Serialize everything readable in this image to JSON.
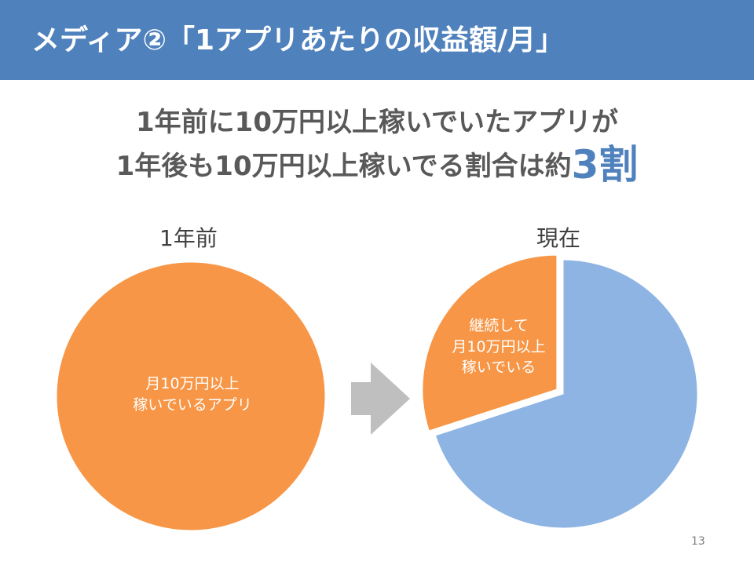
{
  "slide": {
    "title": "メディア②「1アプリあたりの収益額/月」",
    "headline_line1": "1年前に10万円以上稼いでいたアプリが",
    "headline_line2_prefix": "1年後も10万円以上稼いでる割合は約",
    "headline_emphasis": "3割",
    "page_number": "13"
  },
  "colors": {
    "header": "#4f81bd",
    "orange": "#f79646",
    "blue": "#8eb4e3",
    "arrow": "#bfbfbf"
  },
  "chart_data": [
    {
      "type": "pie",
      "title": "1年前",
      "slices": [
        {
          "label": "月10万円以上\n稼いでいるアプリ",
          "value": 100,
          "color": "#f79646"
        }
      ]
    },
    {
      "type": "pie",
      "title": "現在",
      "slices": [
        {
          "label": "継続して\n月10万円以上\n稼いでいる",
          "value": 30,
          "color": "#f79646",
          "exploded": true
        },
        {
          "label": "",
          "value": 70,
          "color": "#8eb4e3"
        }
      ]
    }
  ]
}
